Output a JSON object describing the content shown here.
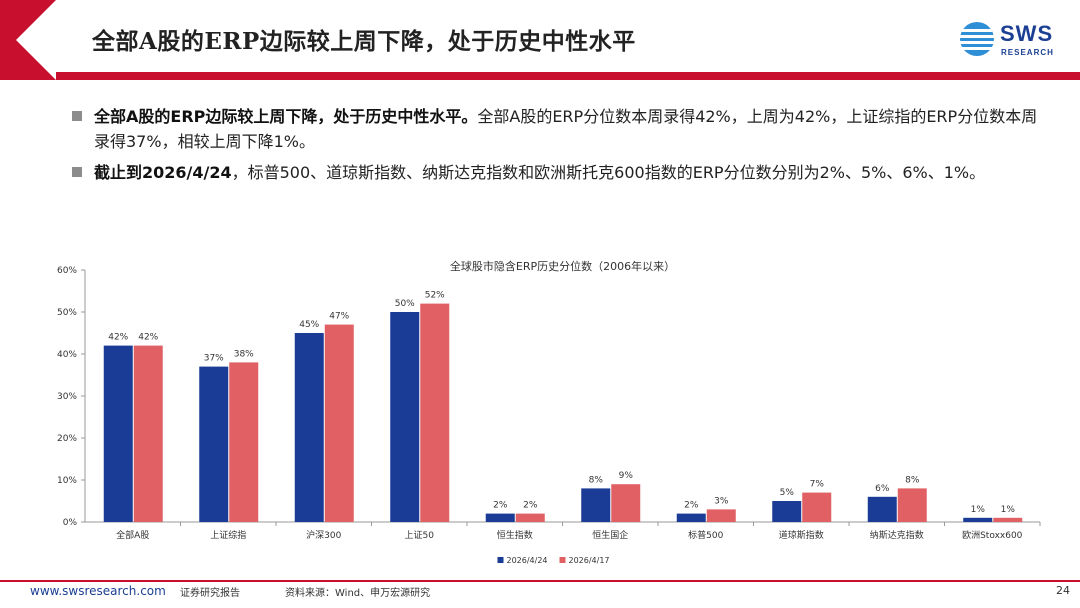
{
  "header": {
    "title": "全部A股的ERP边际较上周下降，处于历史中性水平",
    "logo_main": "SWS",
    "logo_sub": "RESEARCH"
  },
  "bullets": [
    {
      "bold": "全部A股的ERP边际较上周下降，处于历史中性水平。",
      "text": "全部A股的ERP分位数本周录得42%，上周为42%，上证综指的ERP分位数本周录得37%，相较上周下降1%。"
    },
    {
      "bold": "截止到2026/4/24",
      "text": "，标普500、道琼斯指数、纳斯达克指数和欧洲斯托克600指数的ERP分位数分别为2%、5%、6%、1%。"
    }
  ],
  "chart_data": {
    "type": "bar",
    "title": "全球股市隐含ERP历史分位数（2006年以来）",
    "categories": [
      "全部A股",
      "上证综指",
      "沪深300",
      "上证50",
      "恒生指数",
      "恒生国企",
      "标普500",
      "道琼斯指数",
      "纳斯达克指数",
      "欧洲Stoxx600"
    ],
    "series": [
      {
        "name": "2026/4/24",
        "color": "#1a3c96",
        "values": [
          42,
          37,
          45,
          50,
          2,
          8,
          2,
          5,
          6,
          1
        ]
      },
      {
        "name": "2026/4/17",
        "color": "#e06063",
        "values": [
          42,
          38,
          47,
          52,
          2,
          9,
          3,
          7,
          8,
          1
        ]
      }
    ],
    "ylim": [
      0,
      60
    ],
    "yticks": [
      "0%",
      "10%",
      "20%",
      "30%",
      "40%",
      "50%",
      "60%"
    ],
    "value_suffix": "%",
    "legend": "bottom-center",
    "grid": false
  },
  "footer": {
    "url": "www.swsresearch.com",
    "report": "证券研究报告",
    "source": "资料来源：Wind、申万宏源研究",
    "page": "24"
  },
  "colors": {
    "accent": "#c8102e",
    "brand": "#1b3f93"
  }
}
